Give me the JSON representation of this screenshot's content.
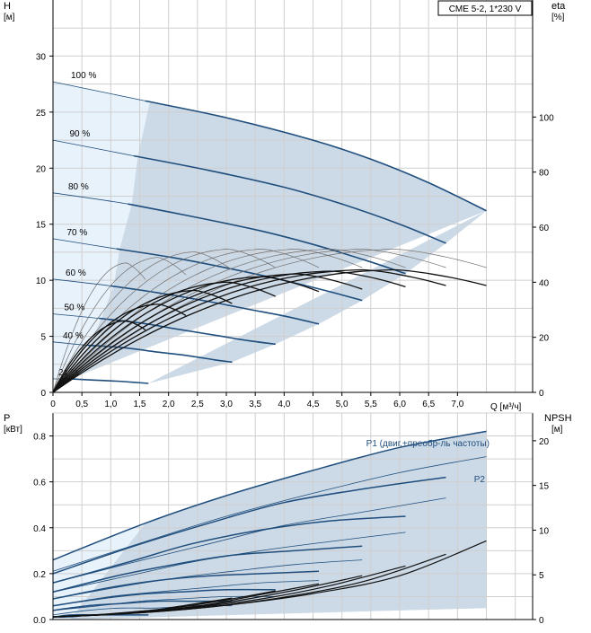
{
  "colors": {
    "grid": "#cfcfcf",
    "axis": "#000000",
    "region_fill": "#c9d6e3",
    "region_light": "#e8f2fb",
    "speed_curve": "#1f4e7d",
    "thin_curve": "#6e6e6e",
    "eta_curve": "#111111",
    "label_blue": "#1f4e7d"
  },
  "top_chart": {
    "title_box": "CME 5-2, 1*230 V",
    "y_left_label_line1": "H",
    "y_left_label_line2": "[м]",
    "y_right_label_line1": "eta",
    "y_right_label_line2": "[%]",
    "x_label": "Q [м³/ч]"
  },
  "bottom_chart": {
    "y_left_label_line1": "P",
    "y_left_label_line2": "[кВт]",
    "y_right_label_line1": "NPSH",
    "y_right_label_line2": "[м]",
    "p1_label": "P1 (двиг.+преобр-ль частоты)",
    "p2_label": "P2"
  },
  "chart_data": [
    {
      "type": "line",
      "title": "CME 5-2, 1*230 V",
      "xlabel": "Q [м³/ч]",
      "ylabel": "H [м]",
      "y2label": "eta [%]",
      "xlim": [
        0,
        8.3
      ],
      "ylim": [
        0,
        35
      ],
      "y2lim": [
        0,
        142.5
      ],
      "x_ticks": [
        0,
        0.5,
        1.0,
        1.5,
        2.0,
        2.5,
        3.0,
        3.5,
        4.0,
        4.5,
        5.0,
        5.5,
        6.0,
        6.5,
        7.0
      ],
      "x_tick_labels": [
        "0",
        "0,5",
        "1,0",
        "1,5",
        "2,0",
        "2,5",
        "3,0",
        "3,5",
        "4,0",
        "4,5",
        "5,0",
        "5,5",
        "6,0",
        "6,5",
        "7,0"
      ],
      "y_ticks": [
        0,
        5,
        10,
        15,
        20,
        25,
        30
      ],
      "y2_ticks": [
        0,
        20,
        40,
        60,
        80,
        100
      ],
      "grid": true,
      "head_curves": [
        {
          "name": "100 %",
          "x": [
            0,
            1.6,
            3.0,
            4.5,
            5.5,
            6.5,
            7.5
          ],
          "y": [
            27.7,
            26.0,
            24.5,
            22.5,
            20.8,
            18.7,
            16.2
          ]
        },
        {
          "name": "90 %",
          "x": [
            0,
            1.4,
            2.7,
            4.0,
            5.0,
            6.0,
            6.8
          ],
          "y": [
            22.5,
            21.1,
            19.8,
            18.3,
            16.8,
            15.0,
            13.3
          ]
        },
        {
          "name": "80 %",
          "x": [
            0,
            1.3,
            2.4,
            3.6,
            4.5,
            5.4,
            6.1
          ],
          "y": [
            17.8,
            16.8,
            15.7,
            14.4,
            13.2,
            11.8,
            10.6
          ]
        },
        {
          "name": "70 %",
          "x": [
            0,
            1.1,
            2.1,
            3.1,
            3.9,
            4.7,
            5.35
          ],
          "y": [
            13.7,
            12.8,
            12.0,
            11.0,
            10.1,
            9.1,
            8.2
          ]
        },
        {
          "name": "60 %",
          "x": [
            0,
            1.0,
            1.8,
            2.7,
            3.4,
            4.1,
            4.6
          ],
          "y": [
            10.1,
            9.5,
            8.9,
            8.1,
            7.4,
            6.7,
            6.1
          ]
        },
        {
          "name": "50 %",
          "x": [
            0,
            0.8,
            1.5,
            2.2,
            2.8,
            3.4,
            3.85
          ],
          "y": [
            7.0,
            6.6,
            6.2,
            5.6,
            5.1,
            4.6,
            4.3
          ]
        },
        {
          "name": "40 %",
          "x": [
            0,
            0.6,
            1.2,
            1.8,
            2.3,
            2.8,
            3.1
          ],
          "y": [
            4.5,
            4.2,
            4.0,
            3.6,
            3.3,
            2.9,
            2.7
          ]
        },
        {
          "name": "21 %",
          "x": [
            0,
            0.3,
            0.7,
            1.1,
            1.4,
            1.65
          ],
          "y": [
            1.2,
            1.2,
            1.1,
            1.0,
            0.9,
            0.8
          ]
        }
      ],
      "eta_peaks_top": [
        {
          "xmax": 7.5,
          "peak": 52
        },
        {
          "xmax": 6.8,
          "peak": 52
        },
        {
          "xmax": 6.1,
          "peak": 52
        },
        {
          "xmax": 5.35,
          "peak": 52
        },
        {
          "xmax": 4.6,
          "peak": 52
        },
        {
          "xmax": 3.85,
          "peak": 52
        },
        {
          "xmax": 3.1,
          "peak": 51
        },
        {
          "xmax": 2.3,
          "peak": 49
        },
        {
          "xmax": 1.6,
          "peak": 47
        }
      ],
      "eta_peaks_bold": [
        {
          "xmax": 7.5,
          "peak": 44.5
        },
        {
          "xmax": 6.8,
          "peak": 44.5
        },
        {
          "xmax": 6.1,
          "peak": 44
        },
        {
          "xmax": 5.35,
          "peak": 43
        },
        {
          "xmax": 4.6,
          "peak": 42
        },
        {
          "xmax": 3.85,
          "peak": 40
        },
        {
          "xmax": 3.1,
          "peak": 37
        },
        {
          "xmax": 2.3,
          "peak": 32
        },
        {
          "xmax": 1.6,
          "peak": 26
        }
      ]
    },
    {
      "type": "line",
      "title": "",
      "xlabel": "",
      "ylabel": "P [кВт]",
      "y2label": "NPSH [м]",
      "xlim": [
        0,
        8.3
      ],
      "ylim": [
        0,
        0.9
      ],
      "y2lim": [
        0,
        23.1
      ],
      "y_ticks": [
        0.0,
        0.2,
        0.4,
        0.6,
        0.8
      ],
      "y_tick_labels": [
        "0.0",
        "0.2",
        "0.4",
        "0.6",
        "0.8"
      ],
      "y2_ticks": [
        0,
        5,
        10,
        15,
        20
      ],
      "grid": true,
      "p1_curves": [
        {
          "name": "P1 (двиг.+преобр-ль частоты)",
          "x": [
            0,
            1.6,
            3.0,
            4.5,
            6.0,
            7.5
          ],
          "y": [
            0.26,
            0.42,
            0.54,
            0.65,
            0.75,
            0.82
          ]
        },
        {
          "x": [
            0,
            1.4,
            2.7,
            4.0,
            5.4,
            6.8
          ],
          "y": [
            0.2,
            0.32,
            0.42,
            0.51,
            0.57,
            0.62
          ]
        },
        {
          "x": [
            0,
            1.3,
            2.4,
            3.6,
            4.8,
            6.1
          ],
          "y": [
            0.16,
            0.25,
            0.33,
            0.39,
            0.43,
            0.45
          ]
        },
        {
          "x": [
            0,
            1.1,
            2.1,
            3.1,
            4.2,
            5.35
          ],
          "y": [
            0.12,
            0.19,
            0.24,
            0.28,
            0.3,
            0.32
          ]
        },
        {
          "x": [
            0,
            1.0,
            1.8,
            2.7,
            3.6,
            4.6
          ],
          "y": [
            0.09,
            0.14,
            0.17,
            0.19,
            0.2,
            0.21
          ]
        },
        {
          "x": [
            0,
            0.8,
            1.5,
            2.2,
            3.0,
            3.85
          ],
          "y": [
            0.06,
            0.09,
            0.11,
            0.12,
            0.13,
            0.13
          ]
        },
        {
          "x": [
            0,
            0.6,
            1.2,
            1.8,
            2.4,
            3.1
          ],
          "y": [
            0.04,
            0.06,
            0.07,
            0.08,
            0.08,
            0.08
          ]
        },
        {
          "x": [
            0,
            0.3,
            0.7,
            1.1,
            1.65
          ],
          "y": [
            0.01,
            0.02,
            0.02,
            0.02,
            0.02
          ]
        }
      ],
      "p2_curves": [
        {
          "name": "P2",
          "x": [
            0,
            1.6,
            3.0,
            4.5,
            6.0,
            7.5
          ],
          "y": [
            0.21,
            0.34,
            0.45,
            0.55,
            0.64,
            0.71
          ]
        },
        {
          "x": [
            0,
            1.4,
            2.7,
            4.0,
            5.4,
            6.8
          ],
          "y": [
            0.16,
            0.25,
            0.33,
            0.41,
            0.47,
            0.53
          ]
        },
        {
          "x": [
            0,
            1.3,
            2.4,
            3.6,
            4.8,
            6.1
          ],
          "y": [
            0.12,
            0.19,
            0.25,
            0.3,
            0.34,
            0.38
          ]
        },
        {
          "x": [
            0,
            1.1,
            2.1,
            3.1,
            4.2,
            5.35
          ],
          "y": [
            0.09,
            0.14,
            0.18,
            0.21,
            0.24,
            0.26
          ]
        },
        {
          "x": [
            0,
            1.0,
            1.8,
            2.7,
            3.6,
            4.6
          ],
          "y": [
            0.06,
            0.1,
            0.12,
            0.14,
            0.16,
            0.17
          ]
        },
        {
          "x": [
            0,
            0.8,
            1.5,
            2.2,
            3.0,
            3.85
          ],
          "y": [
            0.04,
            0.06,
            0.08,
            0.09,
            0.1,
            0.1
          ]
        },
        {
          "x": [
            0,
            0.6,
            1.2,
            1.8,
            2.4,
            3.1
          ],
          "y": [
            0.02,
            0.04,
            0.05,
            0.05,
            0.06,
            0.06
          ]
        },
        {
          "x": [
            0,
            0.3,
            0.7,
            1.1,
            1.65
          ],
          "y": [
            0.01,
            0.01,
            0.02,
            0.02,
            0.02
          ]
        }
      ],
      "npsh_curves": [
        {
          "x": [
            0,
            1.6,
            3.0,
            4.5,
            6.0,
            7.5
          ],
          "y": [
            0.3,
            0.8,
            1.6,
            2.9,
            4.9,
            8.8
          ]
        },
        {
          "x": [
            0,
            1.4,
            2.7,
            4.0,
            5.4,
            6.8
          ],
          "y": [
            0.3,
            0.7,
            1.4,
            2.5,
            4.3,
            7.3
          ]
        },
        {
          "x": [
            0,
            1.3,
            2.4,
            3.6,
            4.8,
            6.1
          ],
          "y": [
            0.3,
            0.7,
            1.3,
            2.3,
            3.8,
            6.0
          ]
        },
        {
          "x": [
            0,
            1.1,
            2.1,
            3.1,
            4.2,
            5.35
          ],
          "y": [
            0.3,
            0.6,
            1.1,
            2.0,
            3.3,
            4.9
          ]
        },
        {
          "x": [
            0,
            1.0,
            1.8,
            2.7,
            3.6,
            4.6
          ],
          "y": [
            0.3,
            0.6,
            1.0,
            1.7,
            2.8,
            4.0
          ]
        },
        {
          "x": [
            0,
            0.8,
            1.5,
            2.2,
            3.0,
            3.85
          ],
          "y": [
            0.3,
            0.5,
            0.9,
            1.4,
            2.2,
            3.2
          ]
        },
        {
          "x": [
            0,
            0.6,
            1.2,
            1.8,
            2.4,
            3.1
          ],
          "y": [
            0.3,
            0.5,
            0.7,
            1.1,
            1.7,
            2.4
          ]
        },
        {
          "x": [
            0,
            0.3,
            0.7,
            1.1,
            1.65
          ],
          "y": [
            0.3,
            0.4,
            0.5,
            0.7,
            1.0
          ]
        }
      ]
    }
  ]
}
